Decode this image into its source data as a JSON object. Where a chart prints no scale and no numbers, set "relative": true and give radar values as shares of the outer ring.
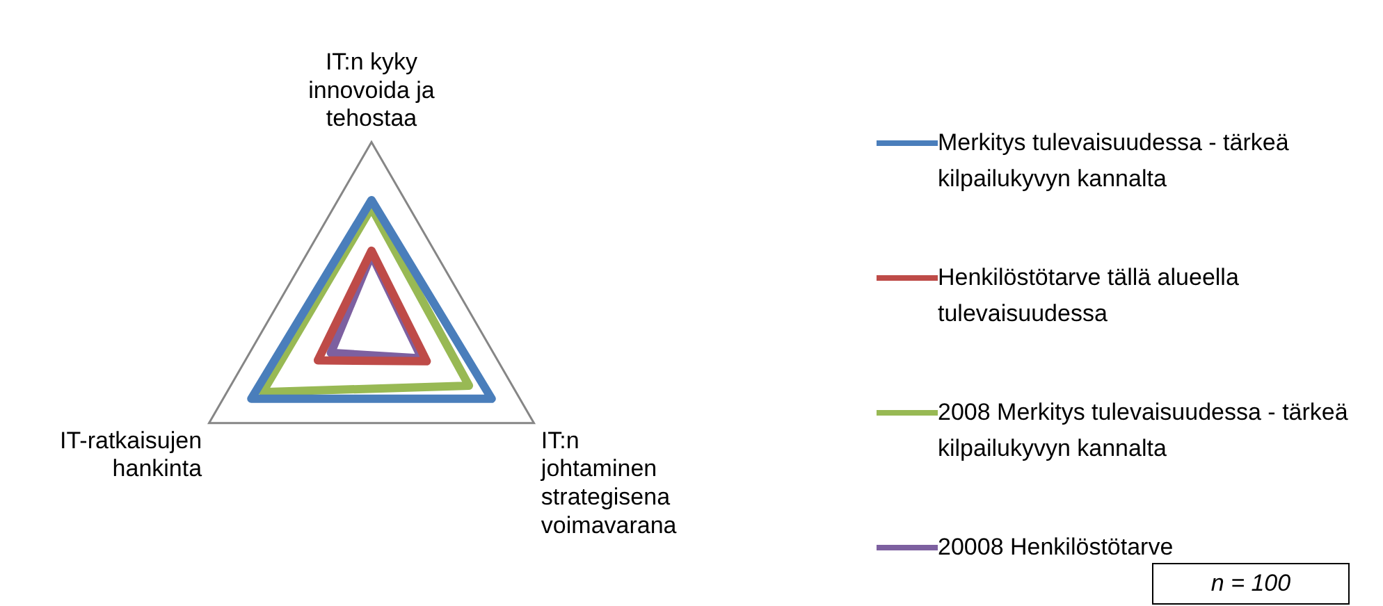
{
  "chart_data": {
    "type": "radar",
    "relative": true,
    "categories": [
      "IT:n kyky innovoida ja tehostaa",
      "IT:n johtaminen strategisena voimavarana",
      "IT-ratkaisujen hankinta"
    ],
    "series": [
      {
        "name": "Merkitys tulevaisuudessa - tärkeä kilpailukyvyn kannalta",
        "color": "#4a7ebb",
        "values": [
          0.69,
          0.74,
          0.74
        ]
      },
      {
        "name": "Henkilöstötarve tällä alueella tulevaisuudessa",
        "color": "#be4b48",
        "values": [
          0.42,
          0.34,
          0.33
        ]
      },
      {
        "name": "2008 Merkitys tulevaisuudessa - tärkeä kilpailukyvyn kannalta",
        "color": "#98b954",
        "values": [
          0.65,
          0.6,
          0.67
        ]
      },
      {
        "name": "20008 Henkilöstötarve",
        "color": "#7d60a0",
        "values": [
          0.4,
          0.31,
          0.25
        ]
      }
    ],
    "legend": "right",
    "marker": "none",
    "annotations": [
      "n =  100"
    ]
  }
}
